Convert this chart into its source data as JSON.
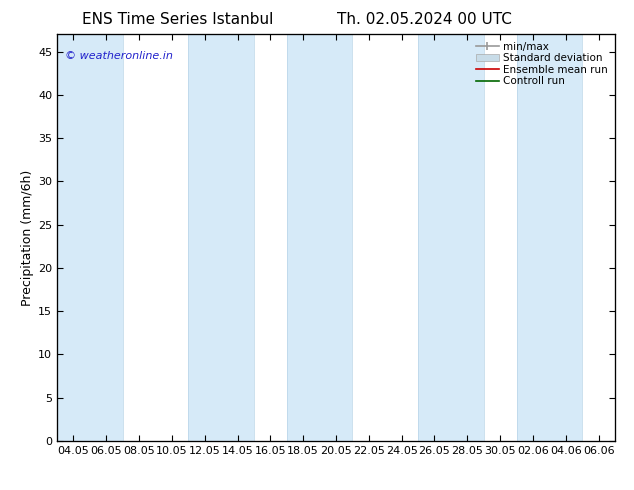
{
  "title_left": "ENS Time Series Istanbul",
  "title_right": "Th. 02.05.2024 00 UTC",
  "ylabel": "Precipitation (mm/6h)",
  "watermark": "© weatheronline.in",
  "ylim": [
    0,
    47
  ],
  "yticks": [
    0,
    5,
    10,
    15,
    20,
    25,
    30,
    35,
    40,
    45
  ],
  "xtick_labels": [
    "04.05",
    "06.05",
    "08.05",
    "10.05",
    "12.05",
    "14.05",
    "16.05",
    "18.05",
    "20.05",
    "22.05",
    "24.05",
    "26.05",
    "28.05",
    "30.05",
    "02.06",
    "04.06",
    "06.06"
  ],
  "bg_color": "#ffffff",
  "plot_bg_color": "#ffffff",
  "band_color": "#d6eaf8",
  "band_edge_color": "#b8d4e8",
  "legend_labels": [
    "min/max",
    "Standard deviation",
    "Ensemble mean run",
    "Controll run"
  ],
  "legend_colors": [
    "#999999",
    "#c8dce8",
    "#cc0000",
    "#006600"
  ],
  "title_fontsize": 11,
  "axis_fontsize": 9,
  "tick_fontsize": 8,
  "watermark_color": "#2222cc"
}
